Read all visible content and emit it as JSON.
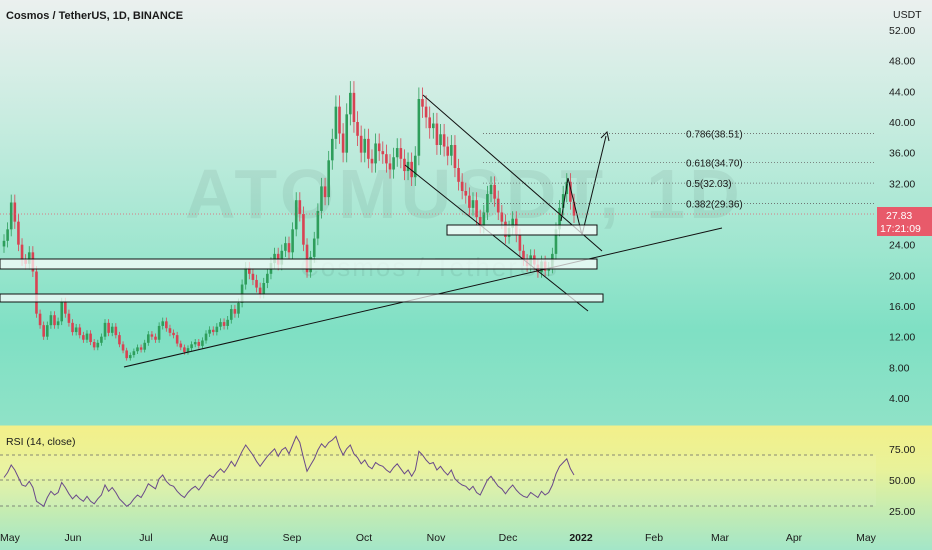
{
  "header": {
    "symbol": "Cosmos / TetherUS, 1D, BINANCE"
  },
  "watermark": {
    "main": "ATOMUSDT, 1D",
    "sub": "Cosmos / TetherUS"
  },
  "price_axis": {
    "unit": "USDT"
  },
  "last_price": {
    "value": "27.83",
    "countdown": "17:21:09",
    "color": "#e85a6a"
  },
  "colors": {
    "up": "#2e9e5b",
    "down": "#d84252",
    "line": "#111111"
  },
  "chart_data": [
    {
      "type": "candlestick",
      "x_labels": [
        "May",
        "Jun",
        "Jul",
        "Aug",
        "Sep",
        "Oct",
        "Nov",
        "Dec",
        "2022",
        "Feb",
        "Mar",
        "Apr",
        "May"
      ],
      "y_ticks": [
        "52.00",
        "48.00",
        "44.00",
        "40.00",
        "36.00",
        "32.00",
        "28.00",
        "24.00",
        "20.00",
        "16.00",
        "12.00",
        "8.00",
        "4.00"
      ],
      "ylim": [
        0,
        54
      ],
      "closes": [
        24.5,
        26.0,
        29.5,
        27.0,
        24.0,
        22.0,
        21.5,
        23.0,
        20.5,
        15.0,
        13.5,
        12.0,
        13.5,
        14.8,
        13.5,
        14.0,
        16.5,
        15.0,
        13.8,
        12.6,
        13.2,
        12.2,
        11.6,
        12.4,
        11.3,
        10.6,
        11.2,
        12.0,
        13.8,
        12.5,
        13.3,
        12.2,
        11.0,
        10.2,
        9.2,
        9.6,
        10.1,
        10.6,
        10.3,
        11.2,
        12.3,
        12.0,
        11.6,
        13.4,
        14.0,
        13.1,
        12.5,
        12.2,
        11.1,
        10.6,
        10.0,
        10.5,
        11.0,
        11.3,
        10.8,
        11.5,
        12.4,
        12.9,
        12.6,
        13.3,
        13.9,
        13.4,
        14.2,
        15.6,
        15.0,
        16.4,
        18.8,
        21.0,
        20.2,
        19.4,
        18.4,
        17.6,
        19.0,
        20.2,
        21.6,
        22.8,
        21.4,
        23.2,
        24.2,
        23.0,
        26.0,
        29.8,
        28.0,
        24.0,
        20.4,
        22.4,
        24.8,
        28.4,
        31.6,
        30.2,
        35.0,
        37.8,
        42.0,
        38.5,
        36.0,
        41.0,
        43.8,
        40.0,
        38.2,
        36.0,
        37.8,
        35.2,
        34.6,
        37.2,
        36.2,
        35.8,
        34.6,
        33.8,
        35.4,
        36.6,
        35.2,
        33.6,
        34.8,
        32.8,
        35.6,
        43.0,
        42.0,
        40.6,
        39.2,
        39.8,
        37.0,
        38.4,
        36.8,
        35.6,
        37.0,
        34.0,
        32.2,
        31.0,
        30.4,
        28.8,
        29.8,
        27.6,
        26.4,
        28.2,
        30.6,
        31.8,
        30.0,
        28.2,
        27.0,
        25.0,
        26.2,
        27.4,
        25.2,
        23.2,
        22.0,
        21.2,
        22.6,
        21.4,
        20.4,
        21.8,
        20.6,
        21.0,
        22.8,
        26.0,
        28.8,
        30.6,
        32.2,
        29.6,
        27.8
      ],
      "fib_levels": [
        {
          "label": "0.786(38.51)",
          "value": 38.51
        },
        {
          "label": "0.618(34.70)",
          "value": 34.7
        },
        {
          "label": "0.5(32.03)",
          "value": 32.03
        },
        {
          "label": "0.382(29.36)",
          "value": 29.36
        }
      ]
    },
    {
      "type": "line",
      "title": "RSI (14, close)",
      "y_ticks": [
        "75.00",
        "50.00",
        "25.00"
      ],
      "ylim": [
        18,
        92
      ],
      "levels": [
        70,
        50,
        30
      ],
      "values": [
        52,
        56,
        62,
        58,
        52,
        46,
        45,
        49,
        44,
        33,
        31,
        29,
        36,
        41,
        38,
        40,
        48,
        44,
        39,
        35,
        38,
        35,
        33,
        37,
        33,
        31,
        35,
        38,
        46,
        41,
        44,
        40,
        35,
        32,
        29,
        31,
        35,
        38,
        36,
        41,
        47,
        45,
        43,
        51,
        54,
        49,
        46,
        45,
        41,
        38,
        36,
        40,
        43,
        45,
        42,
        46,
        51,
        54,
        52,
        56,
        59,
        56,
        60,
        65,
        61,
        67,
        73,
        78,
        74,
        70,
        65,
        61,
        65,
        69,
        72,
        75,
        69,
        74,
        76,
        71,
        78,
        85,
        80,
        68,
        57,
        62,
        67,
        74,
        79,
        76,
        80,
        82,
        85,
        76,
        70,
        75,
        78,
        71,
        68,
        63,
        66,
        61,
        59,
        64,
        62,
        61,
        58,
        56,
        60,
        63,
        59,
        55,
        58,
        53,
        58,
        73,
        70,
        66,
        63,
        64,
        58,
        61,
        57,
        54,
        58,
        51,
        48,
        46,
        45,
        42,
        45,
        40,
        38,
        44,
        50,
        53,
        49,
        45,
        43,
        39,
        43,
        46,
        42,
        39,
        37,
        36,
        40,
        38,
        36,
        41,
        38,
        40,
        46,
        55,
        61,
        64,
        67,
        59,
        54
      ]
    }
  ]
}
